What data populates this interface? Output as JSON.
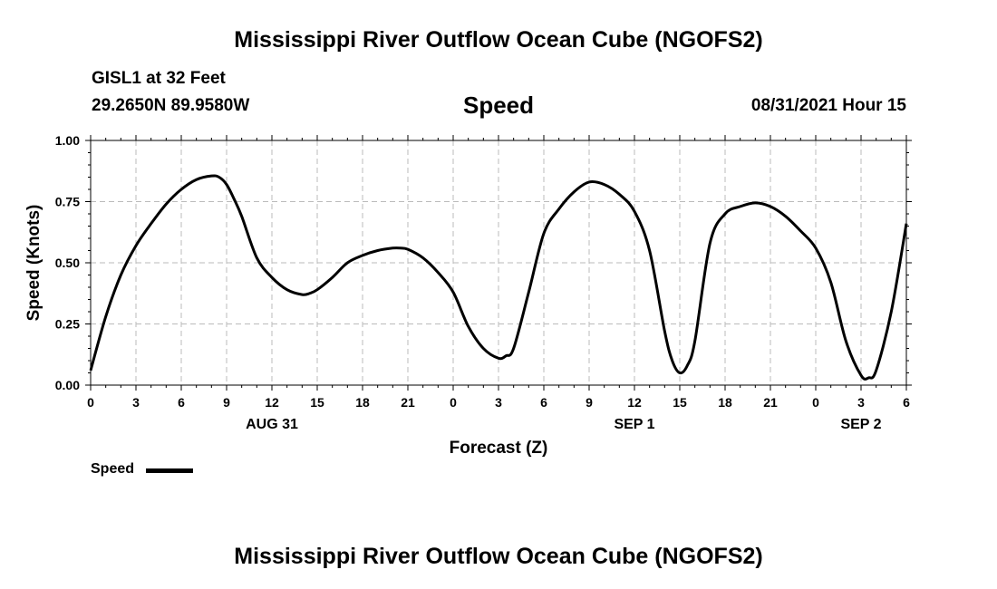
{
  "header": {
    "title": "Mississippi River Outflow Ocean Cube (NGOFS2)",
    "station": "GISL1 at 32 Feet",
    "coords": "29.2650N  89.9580W",
    "variable": "Speed",
    "datetime": "08/31/2021 Hour 15"
  },
  "footer": {
    "title": "Mississippi River Outflow Ocean Cube (NGOFS2)"
  },
  "legend": {
    "label": "Speed"
  },
  "chart_data": {
    "type": "line",
    "title": "Speed",
    "xlabel": "Forecast (Z)",
    "ylabel": "Speed (Knots)",
    "xlim": [
      0,
      54
    ],
    "ylim": [
      0,
      1
    ],
    "grid": true,
    "xticks": [
      0,
      3,
      6,
      9,
      12,
      15,
      18,
      21,
      24,
      27,
      30,
      33,
      36,
      39,
      42,
      45,
      48,
      51,
      54
    ],
    "xtick_labels": [
      "0",
      "3",
      "6",
      "9",
      "12",
      "15",
      "18",
      "21",
      "0",
      "3",
      "6",
      "9",
      "12",
      "15",
      "18",
      "21",
      "0",
      "3",
      "6"
    ],
    "yticks": [
      0,
      0.25,
      0.5,
      0.75,
      1.0
    ],
    "ytick_labels": [
      "0.00",
      "0.25",
      "0.50",
      "0.75",
      "1.00"
    ],
    "date_labels": [
      {
        "x": 12,
        "label": "AUG 31"
      },
      {
        "x": 36,
        "label": "SEP 1"
      },
      {
        "x": 51,
        "label": "SEP 2"
      }
    ],
    "series": [
      {
        "name": "Speed",
        "color": "#000000",
        "x": [
          0,
          1,
          2,
          3,
          4,
          5,
          6,
          7,
          8,
          8.5,
          9,
          9.5,
          10,
          11,
          12,
          13,
          14,
          14.5,
          15,
          16,
          17,
          18,
          19,
          20,
          20.5,
          21,
          22,
          23,
          24,
          25,
          26,
          27,
          27.5,
          28,
          29,
          30,
          31,
          32,
          33,
          34,
          35,
          36,
          37,
          38,
          38.5,
          39,
          39.5,
          40,
          41,
          42,
          43,
          44,
          45,
          46,
          47,
          48,
          49,
          50,
          51,
          51.5,
          52,
          53,
          54
        ],
        "values": [
          0.06,
          0.28,
          0.45,
          0.57,
          0.66,
          0.74,
          0.8,
          0.84,
          0.855,
          0.85,
          0.82,
          0.76,
          0.69,
          0.52,
          0.44,
          0.39,
          0.37,
          0.375,
          0.39,
          0.44,
          0.5,
          0.53,
          0.55,
          0.56,
          0.56,
          0.555,
          0.52,
          0.46,
          0.38,
          0.24,
          0.15,
          0.11,
          0.12,
          0.15,
          0.38,
          0.62,
          0.72,
          0.79,
          0.83,
          0.82,
          0.78,
          0.71,
          0.55,
          0.22,
          0.1,
          0.05,
          0.08,
          0.18,
          0.58,
          0.7,
          0.73,
          0.745,
          0.73,
          0.69,
          0.63,
          0.56,
          0.42,
          0.18,
          0.04,
          0.03,
          0.06,
          0.3,
          0.66
        ]
      }
    ]
  }
}
